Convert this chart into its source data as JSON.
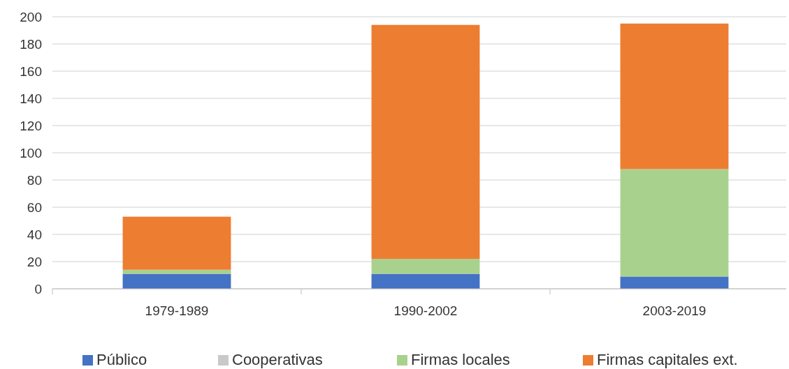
{
  "chart_data": {
    "type": "bar",
    "stacked": true,
    "categories": [
      "1979-1989",
      "1990-2002",
      "2003-2019"
    ],
    "series": [
      {
        "name": "Público",
        "color": "#4472c4",
        "values": [
          11,
          11,
          9
        ]
      },
      {
        "name": "Cooperativas",
        "color": "#c9c9c9",
        "values": [
          0,
          0,
          0
        ]
      },
      {
        "name": "Firmas locales",
        "color": "#a9d18e",
        "values": [
          3,
          11,
          79
        ]
      },
      {
        "name": "Firmas capitales ext.",
        "color": "#ed7d31",
        "values": [
          39,
          172,
          107
        ]
      }
    ],
    "ylim": [
      0,
      200
    ],
    "yticks": [
      0,
      20,
      40,
      60,
      80,
      100,
      120,
      140,
      160,
      180,
      200
    ],
    "grid": "y",
    "legend": "bottom"
  }
}
